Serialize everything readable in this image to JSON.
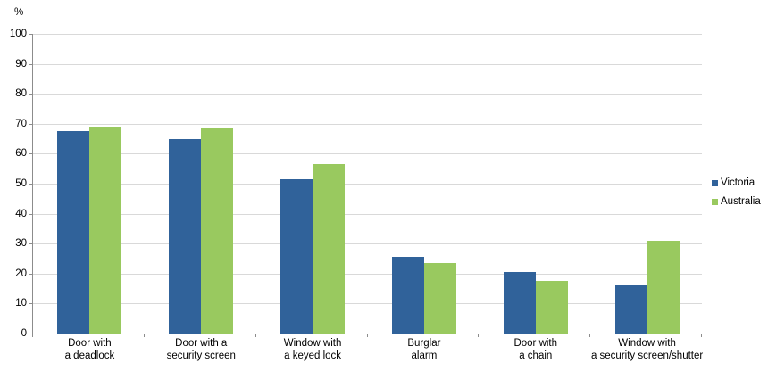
{
  "chart_data": {
    "type": "bar",
    "ylabel": "%",
    "ylim": [
      0,
      100
    ],
    "ytick_interval": 10,
    "grid": "horizontal",
    "legend_position": "right",
    "categories": [
      {
        "line1": "Door with",
        "line2": "a deadlock"
      },
      {
        "line1": "Door with a",
        "line2": "security screen"
      },
      {
        "line1": "Window with",
        "line2": "a keyed lock"
      },
      {
        "line1": "Burglar",
        "line2": "alarm"
      },
      {
        "line1": "Door with",
        "line2": "a chain"
      },
      {
        "line1": "Window with",
        "line2": "a security screen/shutter"
      }
    ],
    "series": [
      {
        "name": "Victoria",
        "color": "#30629A",
        "values": [
          67.5,
          65,
          51.5,
          25.5,
          20.5,
          16
        ]
      },
      {
        "name": "Australia",
        "color": "#99C95F",
        "values": [
          69,
          68.5,
          56.5,
          23.5,
          17.5,
          31
        ]
      }
    ],
    "colors": {
      "gridline": "#D9D9D9",
      "axis": "#8C8C8C",
      "text": "#000000",
      "background": "#FFFFFF"
    }
  }
}
